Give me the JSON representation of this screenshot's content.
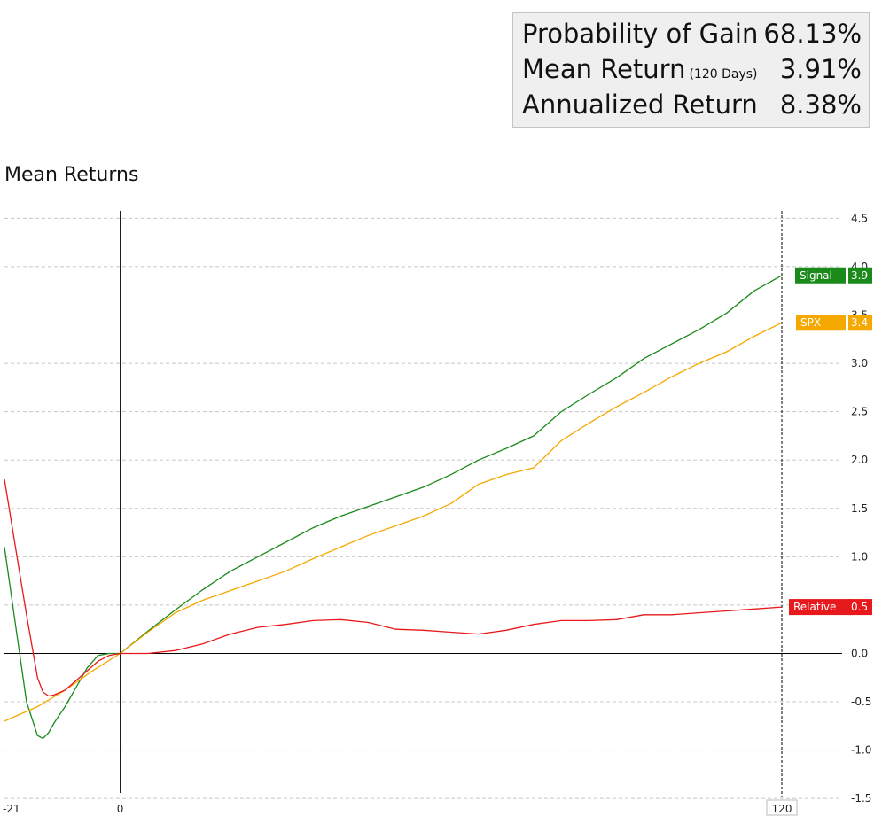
{
  "stats": [
    {
      "label": "Probability of Gain",
      "note": "",
      "value": "68.13%"
    },
    {
      "label": "Mean Return",
      "note": "(120 Days)",
      "value": "3.91%"
    },
    {
      "label": "Annualized Return",
      "note": "",
      "value": "8.38%"
    }
  ],
  "chart_data": {
    "type": "line",
    "title": "Mean Returns",
    "xlabel": "",
    "ylabel": "",
    "xlim": [
      -21,
      120
    ],
    "ylim": [
      -1.7,
      4.65
    ],
    "x_ticks": [
      -21,
      0,
      120
    ],
    "highlighted_x_tick": 120,
    "y_ticks": [
      -1.5,
      -1.0,
      -0.5,
      0.0,
      0.5,
      1.0,
      1.5,
      2.0,
      2.5,
      3.0,
      3.5,
      4.0,
      4.5
    ],
    "grid": true,
    "zero_line": true,
    "event_line_x": 0,
    "end_line_x": 120,
    "legend": "end-labels-right",
    "series": [
      {
        "name": "Signal",
        "color": "#1a8a1a",
        "end_label": "3.9",
        "x": [
          -21,
          -19,
          -17,
          -15,
          -14,
          -13,
          -12,
          -10,
          -8,
          -6,
          -4,
          -2,
          0,
          5,
          10,
          15,
          20,
          25,
          30,
          35,
          40,
          45,
          50,
          55,
          60,
          65,
          70,
          75,
          80,
          85,
          90,
          95,
          100,
          105,
          110,
          115,
          120
        ],
        "values": [
          1.1,
          0.3,
          -0.5,
          -0.85,
          -0.88,
          -0.82,
          -0.72,
          -0.55,
          -0.35,
          -0.15,
          -0.02,
          0.0,
          0.0,
          0.23,
          0.45,
          0.66,
          0.85,
          1.0,
          1.15,
          1.3,
          1.42,
          1.52,
          1.62,
          1.72,
          1.85,
          2.0,
          2.12,
          2.25,
          2.5,
          2.68,
          2.85,
          3.05,
          3.2,
          3.35,
          3.52,
          3.75,
          3.91
        ]
      },
      {
        "name": "SPX",
        "color": "#f5a800",
        "end_label": "3.4",
        "x": [
          -21,
          -15,
          -10,
          -5,
          0,
          5,
          10,
          15,
          20,
          25,
          30,
          35,
          40,
          45,
          50,
          55,
          60,
          65,
          70,
          75,
          80,
          85,
          90,
          95,
          100,
          105,
          110,
          115,
          120
        ],
        "values": [
          -0.7,
          -0.55,
          -0.38,
          -0.18,
          0.0,
          0.22,
          0.42,
          0.55,
          0.65,
          0.75,
          0.85,
          0.98,
          1.1,
          1.22,
          1.32,
          1.42,
          1.55,
          1.75,
          1.85,
          1.92,
          2.2,
          2.38,
          2.55,
          2.7,
          2.86,
          3.0,
          3.12,
          3.28,
          3.42
        ]
      },
      {
        "name": "Relative",
        "color": "#e8191c",
        "end_label": "0.5",
        "x": [
          -21,
          -19,
          -17,
          -15,
          -14,
          -13,
          -12,
          -10,
          -8,
          -6,
          -4,
          -2,
          0,
          5,
          10,
          15,
          20,
          25,
          30,
          35,
          40,
          45,
          50,
          55,
          60,
          65,
          70,
          75,
          80,
          85,
          90,
          95,
          100,
          105,
          110,
          115,
          120
        ],
        "values": [
          1.8,
          1.1,
          0.4,
          -0.25,
          -0.4,
          -0.44,
          -0.43,
          -0.38,
          -0.28,
          -0.18,
          -0.08,
          -0.02,
          0.0,
          0.0,
          0.03,
          0.1,
          0.2,
          0.27,
          0.3,
          0.34,
          0.35,
          0.32,
          0.25,
          0.24,
          0.22,
          0.2,
          0.24,
          0.3,
          0.34,
          0.34,
          0.35,
          0.4,
          0.4,
          0.42,
          0.44,
          0.46,
          0.48
        ]
      }
    ]
  }
}
